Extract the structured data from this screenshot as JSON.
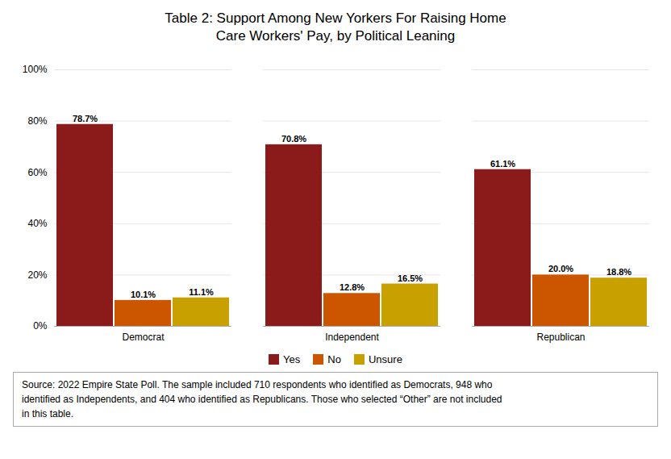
{
  "chart_data": {
    "type": "bar",
    "title": "Table 2: Support Among New Yorkers For Raising Home\nCare Workers' Pay, by Political Leaning",
    "categories": [
      "Democrat",
      "Independent",
      "Republican"
    ],
    "series": [
      {
        "name": "Yes",
        "color": "#8B1A1A",
        "values": [
          78.7,
          70.8,
          61.1
        ],
        "value_labels": [
          "78.7%",
          "70.8%",
          "61.1%"
        ]
      },
      {
        "name": "No",
        "color": "#CC5500",
        "values": [
          10.1,
          12.8,
          20.0
        ],
        "value_labels": [
          "10.1%",
          "12.8%",
          "20.0%"
        ]
      },
      {
        "name": "Unsure",
        "color": "#C8A000",
        "values": [
          11.1,
          16.5,
          18.8
        ],
        "value_labels": [
          "11.1%",
          "16.5%",
          "18.8%"
        ]
      }
    ],
    "ylim": [
      0,
      100
    ],
    "yticks": [
      {
        "value": 0,
        "label": "0%"
      },
      {
        "value": 20,
        "label": "20%"
      },
      {
        "value": 40,
        "label": "40%"
      },
      {
        "value": 60,
        "label": "60%"
      },
      {
        "value": 80,
        "label": "80%"
      },
      {
        "value": 100,
        "label": "100%"
      }
    ],
    "grid": true,
    "data_labels": true,
    "legend": "bottom",
    "annotations": [
      "Source: 2022 Empire State Poll. The sample included 710 respondents who identified as Democrats, 948 who\nidentified as Independents, and 404 who identified as Republicans. Those who selected “Other” are not included\nin this table."
    ]
  }
}
